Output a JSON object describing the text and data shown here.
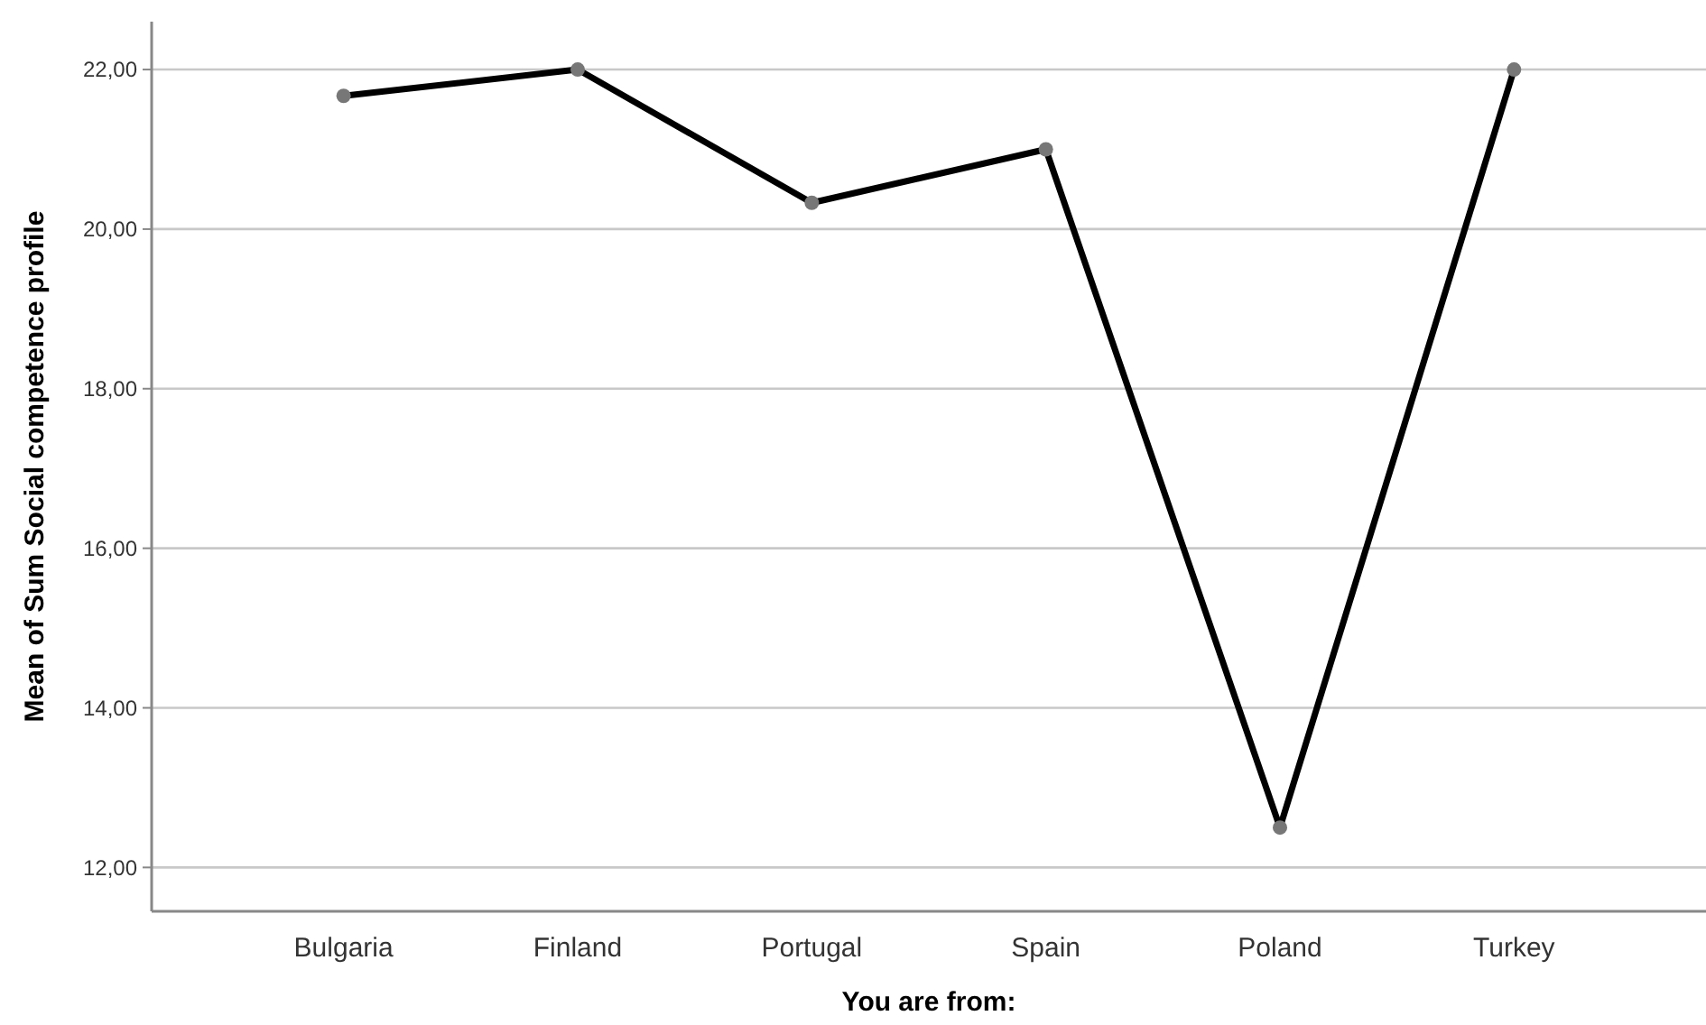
{
  "chart_data": {
    "type": "line",
    "xlabel": "You are from:",
    "ylabel": "Mean of Sum Social competence profile",
    "categories": [
      "Bulgaria",
      "Finland",
      "Portugal",
      "Spain",
      "Poland",
      "Turkey"
    ],
    "series": [
      {
        "color": "#000000",
        "values": [
          21.67,
          22,
          20.33,
          21,
          12.5,
          22
        ]
      }
    ],
    "ylim": [
      11.45,
      22.6
    ],
    "yticks": [
      {
        "value": 12,
        "label": "12,00"
      },
      {
        "value": 14,
        "label": "14,00"
      },
      {
        "value": 16,
        "label": "16,00"
      },
      {
        "value": 18,
        "label": "18,00"
      },
      {
        "value": 20,
        "label": "20,00"
      },
      {
        "value": 22,
        "label": "22,00"
      }
    ],
    "grid": "y",
    "marker": "circle",
    "line_style": "solid"
  }
}
